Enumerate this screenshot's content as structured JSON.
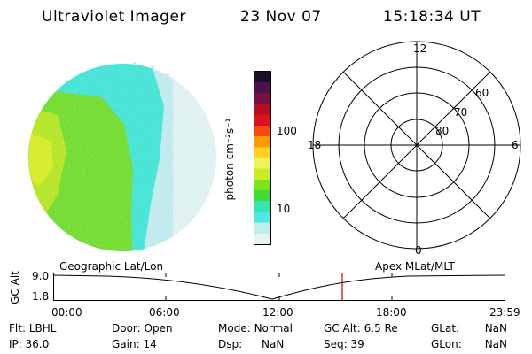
{
  "header": {
    "instrument": "Ultraviolet Imager",
    "date": "23 Nov 07",
    "time": "15:18:34 UT"
  },
  "image_panel": {
    "description_icon": "auroral-image-disk"
  },
  "colorbar": {
    "unit_label": "photon cm⁻²s⁻¹",
    "ticks": [
      "100",
      "10"
    ],
    "scale": "log",
    "colors": [
      "#1a0f2e",
      "#4b1050",
      "#7a1040",
      "#b3101f",
      "#e0101a",
      "#f54a0a",
      "#ff9a00",
      "#ffd21a",
      "#f3f060",
      "#c6ee20",
      "#7ee31e",
      "#3fdb2e",
      "#36e5b4",
      "#4fe8e4",
      "#bdeff0",
      "#e9f2f3"
    ]
  },
  "polar_plot": {
    "mlt_labels": [
      "12",
      "18",
      "6",
      "0"
    ],
    "lat_labels": [
      "60",
      "70",
      "80"
    ]
  },
  "timeline": {
    "left_label": "Geographic Lat/Lon",
    "right_label": "Apex MLat/MLT",
    "y_axis_label": "GC Alt",
    "y_ticks": [
      "9.0",
      "1.8"
    ],
    "x_ticks": [
      "00:00",
      "06:00",
      "12:00",
      "18:00",
      "23:59"
    ],
    "marker_time": "15:18",
    "marker_color": "#cc0000"
  },
  "status": {
    "row1": [
      {
        "key": "Flt:",
        "value": "LBHL"
      },
      {
        "key": "Door:",
        "value": "Open"
      },
      {
        "key": "Mode:",
        "value": "Normal"
      },
      {
        "key": "GC Alt:",
        "value": "6.5 Re"
      },
      {
        "key": "GLat:",
        "value": "NaN"
      }
    ],
    "row2": [
      {
        "key": "IP:",
        "value": "36.0"
      },
      {
        "key": "Gain:",
        "value": "14"
      },
      {
        "key": "Dsp:",
        "value": "NaN"
      },
      {
        "key": "Seq:",
        "value": "39"
      },
      {
        "key": "GLon:",
        "value": "NaN"
      }
    ]
  }
}
